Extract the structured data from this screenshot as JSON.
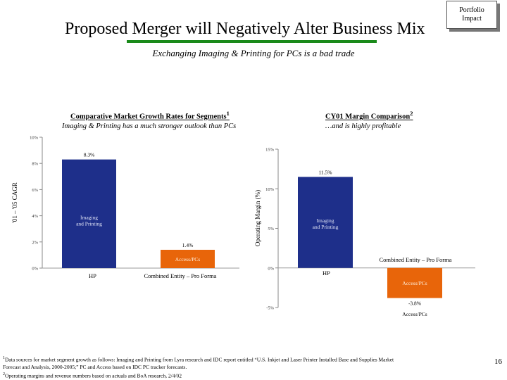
{
  "header": {
    "title": "Proposed Merger will Negatively Alter Business Mix",
    "subtitle": "Exchanging Imaging & Printing for PCs is a bad trade",
    "badge_line1": "Portfolio",
    "badge_line2": "Impact"
  },
  "chart1": {
    "heading": "Comparative Market Growth Rates for Segments",
    "heading_sup": "1",
    "subheading": "Imaging & Printing has a much stronger outlook than PCs"
  },
  "chart2": {
    "heading": "CY01 Margin Comparison",
    "heading_sup": "2",
    "subheading": "…and is highly profitable"
  },
  "chart_data": [
    {
      "type": "bar",
      "title": "Comparative Market Growth Rates for Segments",
      "ylabel": "'01 – '05 CAGR",
      "xlabel": "",
      "ylim": [
        0,
        10
      ],
      "yticks": [
        0,
        2,
        4,
        6,
        8,
        10
      ],
      "ytick_labels": [
        "0%",
        "2%",
        "4%",
        "6%",
        "8%",
        "10%"
      ],
      "categories": [
        "HP",
        "Combined Entity – Pro Forma"
      ],
      "values": [
        8.3,
        1.4
      ],
      "value_labels": [
        "8.3%",
        "1.4%"
      ],
      "inner_labels": [
        "Imaging and Printing",
        "Access/PCs"
      ],
      "colors": [
        "#1e2f8a",
        "#e8650a"
      ],
      "grid": false
    },
    {
      "type": "bar",
      "title": "CY01 Margin Comparison",
      "ylabel": "Operating Margin (%)",
      "xlabel": "",
      "ylim": [
        -5,
        15
      ],
      "yticks": [
        -5,
        0,
        5,
        10,
        15
      ],
      "ytick_labels": [
        "-5%",
        "0%",
        "5%",
        "10%",
        "15%"
      ],
      "categories": [
        "HP",
        "Combined Entity – Pro Forma"
      ],
      "values": [
        11.5,
        -3.8
      ],
      "value_labels": [
        "11.5%",
        "-3.8%"
      ],
      "inner_labels": [
        "Imaging and Printing",
        "Access/PCs"
      ],
      "below_label": "Access/PCs",
      "colors": [
        "#1e2f8a",
        "#e8650a"
      ],
      "grid": false
    }
  ],
  "footnote": {
    "line1_sup": "1",
    "line1": "Data sources for market segment growth as follows: Imaging and Printing from Lyra research and IDC report entitled “U.S. Inkjet and Laser Printer Installed Base and Supplies Market",
    "line2": "Forecast and Analysis, 2000-2005;” PC and Access based on IDC PC tracker forecasts.",
    "line3_sup": "2",
    "line3": "Operating margins and revenue numbers based on actuals and BoA research, 2/4/02"
  },
  "page_number": "16"
}
